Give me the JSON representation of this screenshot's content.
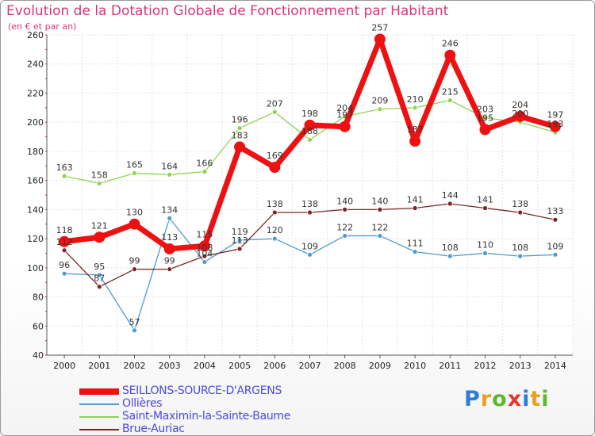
{
  "title": "Evolution de la Dotation Globale de Fonctionnement par Habitant",
  "subtitle": "(en € et par an)",
  "logo": {
    "text": "Proxiti",
    "letter_colors": [
      "#2f7dd6",
      "#e8a020",
      "#5cb82e",
      "#e63535",
      "#2f7dd6",
      "#e8a020",
      "#5cb82e"
    ]
  },
  "chart_data": {
    "type": "line",
    "x": [
      "2000",
      "2001",
      "2002",
      "2003",
      "2004",
      "2005",
      "2006",
      "2007",
      "2008",
      "2009",
      "2010",
      "2011",
      "2012",
      "2013",
      "2014"
    ],
    "ylim": [
      40,
      260
    ],
    "yticks": [
      40,
      60,
      80,
      100,
      120,
      140,
      160,
      180,
      200,
      220,
      240,
      260
    ],
    "grid": true,
    "legend_position": "bottom-left",
    "series": [
      {
        "name": "SEILLONS-SOURCE-D'ARGENS",
        "color": "#ee1111",
        "values": [
          118,
          121,
          130,
          113,
          115,
          183,
          169,
          198,
          197,
          257,
          187,
          246,
          195,
          204,
          197
        ]
      },
      {
        "name": "Ollières",
        "color": "#4d9bd0",
        "values": [
          96,
          95,
          57,
          134,
          104,
          119,
          120,
          109,
          122,
          122,
          111,
          108,
          110,
          108,
          109
        ]
      },
      {
        "name": "Saint-Maximin-la-Sainte-Baume",
        "color": "#8ed454",
        "values": [
          163,
          158,
          165,
          164,
          166,
          196,
          207,
          188,
          204,
          209,
          210,
          215,
          203,
          200,
          193
        ]
      },
      {
        "name": "Brue-Auriac",
        "color": "#7a2525",
        "values": [
          112,
          87,
          99,
          99,
          108,
          113,
          138,
          138,
          140,
          140,
          141,
          144,
          141,
          138,
          133
        ]
      }
    ],
    "labels": [
      [
        "118",
        "121",
        "130",
        "113",
        "115",
        "183",
        "169",
        "198",
        "197",
        "257",
        "187",
        "246",
        "195",
        "204",
        "197"
      ],
      [
        "96",
        "95",
        "57",
        "134",
        "104",
        "119",
        "120",
        "109",
        "122",
        "122",
        "111",
        "108",
        "110",
        "108",
        "109"
      ],
      [
        "163",
        "158",
        "165",
        "164",
        "166",
        "196",
        "207",
        "188",
        "204",
        "209",
        "210",
        "215",
        "203",
        "200",
        "193"
      ],
      [
        "112",
        "87",
        "99",
        "99",
        "108",
        "113",
        "138",
        "138",
        "140",
        "140",
        "141",
        "144",
        "141",
        "138",
        "133"
      ]
    ]
  }
}
